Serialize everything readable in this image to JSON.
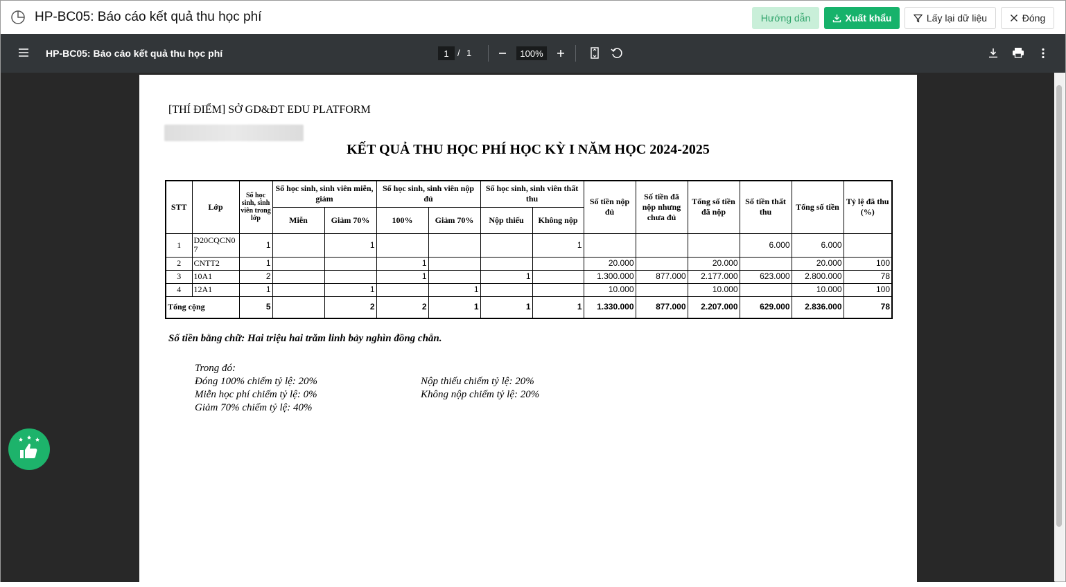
{
  "header": {
    "title": "HP-BC05: Báo cáo kết quả thu học phí",
    "buttons": [
      "Hướng dẫn",
      "Xuất khẩu",
      "Lấy lại dữ liệu",
      "Đóng"
    ]
  },
  "viewer": {
    "title": "HP-BC05: Báo cáo kết quả thu học phí",
    "page": "1",
    "page_separator": "/",
    "page_count": "1",
    "zoom": "100%"
  },
  "document": {
    "org": "[THÍ ĐIỂM] SỞ GD&ĐT EDU PLATFORM",
    "title": "KẾT QUẢ THU HỌC PHÍ HỌC KỲ I NĂM HỌC 2024-2025",
    "table": {
      "head_top": [
        "STT",
        "Lớp",
        "Số học sinh, sinh viên trong lớp",
        "Số học sinh, sinh viên miễn, giảm",
        "Số học sinh, sinh viên nộp đủ",
        "Số học sinh, sinh viên thất thu",
        "Số tiền nộp đủ",
        "Số tiền đã nộp nhưng chưa đủ",
        "Tổng số tiền đã nộp",
        "Số tiền thất thu",
        "Tổng số tiền",
        "Tỷ lệ đã thu (%)"
      ],
      "head_sub": [
        "Miễn",
        "Giảm 70%",
        "100%",
        "Giảm 70%",
        "Nộp thiếu",
        "Không nộp"
      ],
      "rows": [
        [
          "1",
          "D20CQCN07",
          "1",
          null,
          "1",
          null,
          null,
          null,
          "1",
          null,
          null,
          null,
          "6.000",
          "6.000",
          null
        ],
        [
          "2",
          "CNTT2",
          "1",
          null,
          null,
          "1",
          null,
          null,
          null,
          "20.000",
          null,
          "20.000",
          null,
          "20.000",
          "100"
        ],
        [
          "3",
          "10A1",
          "2",
          null,
          null,
          "1",
          null,
          "1",
          null,
          "1.300.000",
          "877.000",
          "2.177.000",
          "623.000",
          "2.800.000",
          "78"
        ],
        [
          "4",
          "12A1",
          "1",
          null,
          "1",
          null,
          "1",
          null,
          null,
          "10.000",
          null,
          "10.000",
          null,
          "10.000",
          "100"
        ]
      ],
      "total": [
        "Tổng cộng",
        "5",
        null,
        "2",
        "2",
        "1",
        "1",
        "1",
        "1.330.000",
        "877.000",
        "2.207.000",
        "629.000",
        "2.836.000",
        "78"
      ]
    },
    "amount_in_words": "Số tiền bằng chữ: Hai triệu hai trăm linh bảy nghìn đồng chẵn.",
    "breakdown_label": "Trong đó:",
    "breakdown_left": [
      "Đóng 100% chiếm tỷ lệ: 20%",
      "Miễn học phí chiếm tỷ lệ: 0%",
      "Giảm 70% chiếm tỷ lệ: 40%"
    ],
    "breakdown_right": [
      "Nộp thiếu chiếm tỷ lệ: 20%",
      "Không nộp chiếm tỷ lệ: 20%"
    ]
  }
}
